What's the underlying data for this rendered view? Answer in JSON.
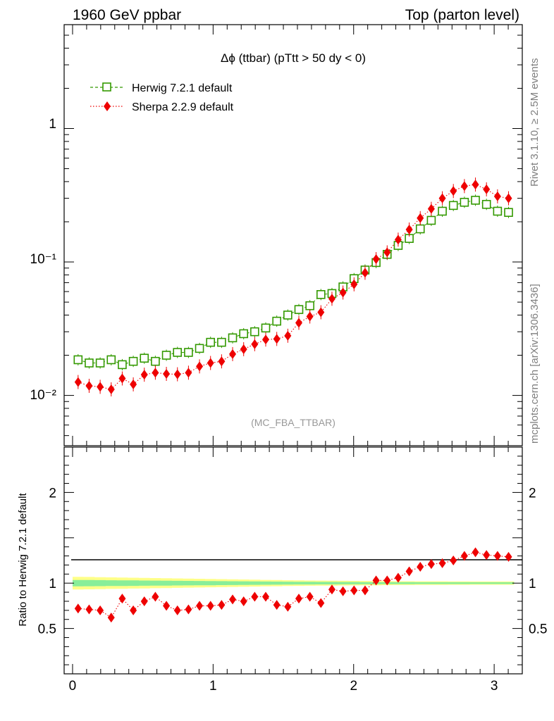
{
  "header": {
    "left": "1960 GeV ppbar",
    "right": "Top (parton level)"
  },
  "side_labels": {
    "rivet": "Rivet 3.1.10, ≥ 2.5M events",
    "site": "mcplots.cern.ch [arXiv:1306.3436]"
  },
  "chart_data": {
    "type": "scatter",
    "title": "Δϕ (ttbar) (pTtt > 50 dy < 0)",
    "watermark": "(MC_FBA_TTBAR)",
    "x": [
      0.0393,
      0.1178,
      0.1963,
      0.2749,
      0.3534,
      0.432,
      0.5105,
      0.589,
      0.6676,
      0.7461,
      0.8247,
      0.9032,
      0.9817,
      1.0603,
      1.1388,
      1.2174,
      1.2959,
      1.3744,
      1.453,
      1.5315,
      1.6101,
      1.6886,
      1.7671,
      1.8457,
      1.9242,
      2.0028,
      2.0813,
      2.1598,
      2.2384,
      2.3169,
      2.3955,
      2.474,
      2.5525,
      2.6311,
      2.7096,
      2.7882,
      2.8667,
      2.9452,
      3.0238,
      3.1023
    ],
    "xlim": [
      -0.06,
      3.2
    ],
    "xticks": [
      "0",
      "1",
      "2",
      "3"
    ],
    "main": {
      "ylim": [
        0.0042,
        6.0
      ],
      "yscale": "log",
      "yticks": [
        "1",
        "10⁻¹",
        "10⁻²"
      ]
    },
    "series": [
      {
        "name": "Herwig 7.2.1 default",
        "color": "#339900",
        "marker": "open-square",
        "line": "dashed",
        "values": [
          0.0185,
          0.0175,
          0.0175,
          0.0185,
          0.017,
          0.018,
          0.019,
          0.018,
          0.02,
          0.021,
          0.021,
          0.0225,
          0.025,
          0.025,
          0.027,
          0.029,
          0.03,
          0.032,
          0.036,
          0.04,
          0.044,
          0.047,
          0.057,
          0.058,
          0.065,
          0.075,
          0.087,
          0.099,
          0.114,
          0.133,
          0.15,
          0.177,
          0.205,
          0.24,
          0.265,
          0.28,
          0.29,
          0.27,
          0.24,
          0.235
        ]
      },
      {
        "name": "Sherpa 2.2.9 default",
        "color": "#ee0000",
        "marker": "filled-diamond",
        "line": "dotted",
        "values": [
          0.0126,
          0.0118,
          0.0116,
          0.0111,
          0.0134,
          0.0121,
          0.0143,
          0.0148,
          0.0145,
          0.0144,
          0.0148,
          0.0165,
          0.0175,
          0.018,
          0.0204,
          0.0222,
          0.0242,
          0.0262,
          0.0265,
          0.028,
          0.035,
          0.039,
          0.042,
          0.053,
          0.059,
          0.068,
          0.083,
          0.105,
          0.118,
          0.147,
          0.175,
          0.213,
          0.25,
          0.3,
          0.34,
          0.37,
          0.38,
          0.35,
          0.31,
          0.3
        ]
      }
    ],
    "ratio": {
      "ylabel": "Ratio to Herwig 7.2.1 default",
      "ylim": [
        0.0,
        2.5
      ],
      "yticks": [
        {
          "v": 2,
          "label": "2"
        },
        {
          "v": 1,
          "label": "1"
        },
        {
          "v": 0.5,
          "label": "0.5"
        }
      ],
      "reference_line": 1.0,
      "band_yellow_halfwidth": [
        0.07,
        0.068,
        0.066,
        0.064,
        0.062,
        0.06,
        0.058,
        0.056,
        0.054,
        0.052,
        0.05,
        0.048,
        0.046,
        0.044,
        0.042,
        0.04,
        0.038,
        0.036,
        0.034,
        0.032,
        0.03,
        0.029,
        0.028,
        0.027,
        0.026,
        0.025,
        0.024,
        0.023,
        0.022,
        0.021,
        0.021,
        0.02,
        0.02,
        0.02,
        0.019,
        0.019,
        0.018,
        0.018,
        0.018,
        0.018
      ],
      "band_green_halfwidth": [
        0.035,
        0.034,
        0.033,
        0.032,
        0.031,
        0.03,
        0.029,
        0.028,
        0.027,
        0.026,
        0.025,
        0.024,
        0.023,
        0.022,
        0.021,
        0.02,
        0.019,
        0.018,
        0.017,
        0.016,
        0.015,
        0.015,
        0.014,
        0.014,
        0.013,
        0.013,
        0.012,
        0.012,
        0.011,
        0.011,
        0.011,
        0.01,
        0.01,
        0.01,
        0.01,
        0.01,
        0.009,
        0.009,
        0.009,
        0.009
      ],
      "sherpa_values": [
        0.72,
        0.71,
        0.7,
        0.62,
        0.83,
        0.7,
        0.8,
        0.85,
        0.75,
        0.7,
        0.71,
        0.75,
        0.75,
        0.76,
        0.82,
        0.8,
        0.85,
        0.85,
        0.76,
        0.74,
        0.83,
        0.85,
        0.78,
        0.93,
        0.91,
        0.92,
        0.92,
        1.03,
        1.03,
        1.06,
        1.13,
        1.18,
        1.21,
        1.22,
        1.25,
        1.3,
        1.34,
        1.31,
        1.3,
        1.29
      ],
      "sherpa_errors": [
        0.04,
        0.04,
        0.04,
        0.04,
        0.04,
        0.04,
        0.04,
        0.03,
        0.03,
        0.03,
        0.03,
        0.03,
        0.03,
        0.03,
        0.03,
        0.03,
        0.03,
        0.03,
        0.03,
        0.03,
        0.03,
        0.03,
        0.03,
        0.02,
        0.02,
        0.02,
        0.02,
        0.02,
        0.02,
        0.02,
        0.02,
        0.02,
        0.02,
        0.02,
        0.02,
        0.02,
        0.02,
        0.02,
        0.02,
        0.02
      ]
    }
  }
}
